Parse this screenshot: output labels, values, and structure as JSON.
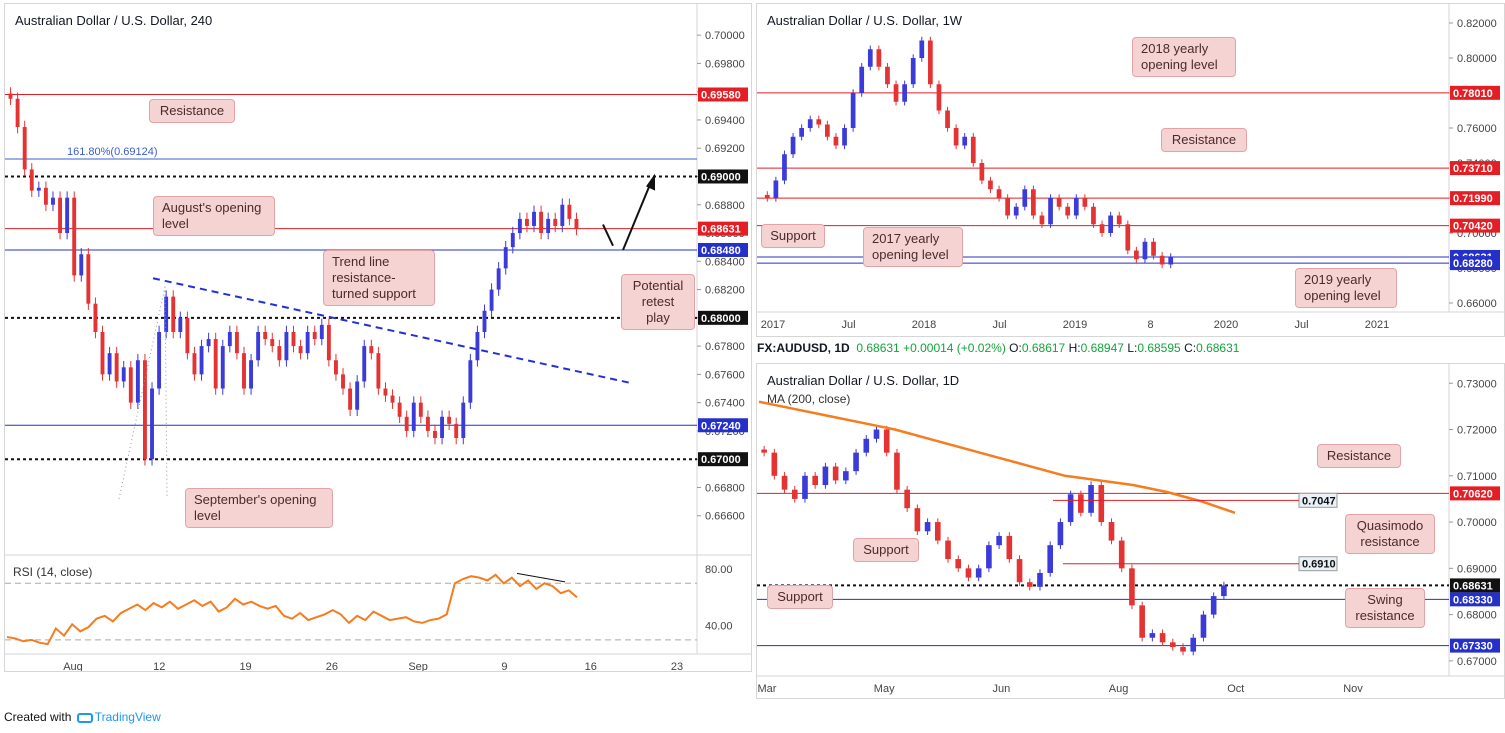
{
  "footer": {
    "created_with": "Created with",
    "brand": "TradingView"
  },
  "info": {
    "symbol": "FX:AUDUSD, 1D",
    "price": "0.68631",
    "change": "+0.00014 (+0.02%)",
    "o_label": "O:",
    "o": "0.68617",
    "h_label": "H:",
    "h": "0.68947",
    "l_label": "L:",
    "l": "0.68595",
    "c_label": "C:",
    "c": "0.68631"
  },
  "colors": {
    "up": "#3b3bd9",
    "down": "#e33333",
    "ma": "#f57c1f",
    "rsi": "#f57c1f",
    "resistance": "#e31e24",
    "support": "#2430c8"
  },
  "chart_data": [
    {
      "type": "candlestick",
      "title": "Australian Dollar / U.S. Dollar, 240",
      "ylim": [
        0.664,
        0.701
      ],
      "y_ticks": [
        "0.70000",
        "0.69800",
        "0.69600",
        "0.69400",
        "0.69200",
        "0.69000",
        "0.68800",
        "0.68600",
        "0.68400",
        "0.68200",
        "0.68000",
        "0.67800",
        "0.67600",
        "0.67400",
        "0.67200",
        "0.67000",
        "0.66800",
        "0.66600"
      ],
      "x_ticks": [
        "Aug",
        "12",
        "19",
        "26",
        "Sep",
        "9",
        "16",
        "23"
      ],
      "levels": [
        {
          "value": 0.6958,
          "label": "0.69580",
          "style": "red"
        },
        {
          "value": 0.69124,
          "label": "161.80%(0.69124)",
          "style": "fib"
        },
        {
          "value": 0.69,
          "label": "0.69000",
          "style": "black"
        },
        {
          "value": 0.68631,
          "label": "0.68631",
          "style": "red"
        },
        {
          "value": 0.6848,
          "label": "0.68480",
          "style": "blue"
        },
        {
          "value": 0.68,
          "label": "0.68000",
          "style": "black"
        },
        {
          "value": 0.6724,
          "label": "0.67240",
          "style": "blue"
        },
        {
          "value": 0.67,
          "label": "0.67000",
          "style": "black"
        }
      ],
      "annotations": [
        "Resistance",
        "August's opening level",
        "Trend line resistance-turned support",
        "Potential retest play",
        "September's opening level"
      ],
      "price_path": [
        0.6955,
        0.6935,
        0.6905,
        0.689,
        0.6892,
        0.688,
        0.6885,
        0.686,
        0.6885,
        0.683,
        0.6845,
        0.681,
        0.679,
        0.676,
        0.6775,
        0.6755,
        0.6765,
        0.674,
        0.677,
        0.67,
        0.675,
        0.679,
        0.6815,
        0.679,
        0.68,
        0.6775,
        0.676,
        0.678,
        0.6785,
        0.675,
        0.678,
        0.679,
        0.6775,
        0.675,
        0.677,
        0.679,
        0.6785,
        0.678,
        0.677,
        0.679,
        0.678,
        0.6775,
        0.679,
        0.6785,
        0.6795,
        0.677,
        0.676,
        0.675,
        0.6735,
        0.6755,
        0.678,
        0.6775,
        0.675,
        0.6745,
        0.674,
        0.673,
        0.672,
        0.674,
        0.673,
        0.672,
        0.6715,
        0.673,
        0.6725,
        0.6715,
        0.674,
        0.677,
        0.679,
        0.6805,
        0.682,
        0.6835,
        0.685,
        0.686,
        0.687,
        0.6865,
        0.6875,
        0.686,
        0.687,
        0.6865,
        0.688,
        0.687,
        0.6863
      ],
      "rsi": {
        "label": "RSI (14, close)",
        "ticks": [
          "80.00",
          "40.00"
        ],
        "ylim": [
          20,
          90
        ],
        "values": [
          32,
          31,
          29,
          30,
          28,
          27,
          38,
          33,
          41,
          36,
          39,
          45,
          47,
          43,
          49,
          52,
          55,
          51,
          56,
          53,
          57,
          52,
          55,
          58,
          54,
          57,
          50,
          53,
          59,
          55,
          57,
          54,
          52,
          54,
          47,
          45,
          49,
          44,
          46,
          48,
          51,
          48,
          42,
          47,
          44,
          50,
          47,
          44,
          45,
          46,
          43,
          42,
          44,
          45,
          48,
          70,
          73,
          75,
          74,
          72,
          76,
          70,
          74,
          68,
          72,
          66,
          70,
          68,
          63,
          65,
          60
        ]
      }
    },
    {
      "type": "candlestick",
      "title": "Australian Dollar / U.S. Dollar, 1W",
      "ylim": [
        0.648,
        0.824
      ],
      "y_ticks": [
        "0.82000",
        "0.80000",
        "0.78000",
        "0.76000",
        "0.74000",
        "0.72000",
        "0.70000",
        "0.68000",
        "0.66000"
      ],
      "x_ticks": [
        "2017",
        "Jul",
        "2018",
        "Jul",
        "2019",
        "8",
        "2020",
        "Jul",
        "2021"
      ],
      "levels": [
        {
          "value": 0.7801,
          "label": "0.78010",
          "style": "red"
        },
        {
          "value": 0.7371,
          "label": "0.73710",
          "style": "red"
        },
        {
          "value": 0.7199,
          "label": "0.71990",
          "style": "red"
        },
        {
          "value": 0.7042,
          "label": "0.70420",
          "style": "red"
        },
        {
          "value": 0.68631,
          "label": "0.68631",
          "style": "blue"
        },
        {
          "value": 0.6828,
          "label": "0.68280",
          "style": "blue"
        }
      ],
      "annotations": [
        "2018 yearly opening level",
        "Resistance",
        "Support",
        "2017 yearly opening level",
        "2019 yearly opening level"
      ],
      "price_path": [
        0.72,
        0.73,
        0.745,
        0.755,
        0.76,
        0.765,
        0.762,
        0.755,
        0.75,
        0.76,
        0.78,
        0.795,
        0.805,
        0.795,
        0.785,
        0.775,
        0.785,
        0.8,
        0.81,
        0.785,
        0.77,
        0.76,
        0.75,
        0.755,
        0.74,
        0.73,
        0.725,
        0.72,
        0.71,
        0.715,
        0.725,
        0.71,
        0.705,
        0.72,
        0.715,
        0.71,
        0.72,
        0.715,
        0.705,
        0.7,
        0.71,
        0.705,
        0.69,
        0.685,
        0.695,
        0.687,
        0.682,
        0.6863
      ]
    },
    {
      "type": "candlestick",
      "title": "Australian Dollar / U.S. Dollar, 1D",
      "ylim": [
        0.665,
        0.732
      ],
      "y_ticks": [
        "0.73000",
        "0.72000",
        "0.71000",
        "0.70000",
        "0.69000",
        "0.68000",
        "0.67000"
      ],
      "x_ticks": [
        "Mar",
        "May",
        "Jun",
        "Aug",
        "Oct",
        "Nov"
      ],
      "ma_label": "MA (200, close)",
      "ma_path": [
        0.726,
        0.7245,
        0.723,
        0.7215,
        0.72,
        0.718,
        0.716,
        0.714,
        0.712,
        0.71,
        0.709,
        0.708,
        0.7065,
        0.7045,
        0.702
      ],
      "levels": [
        {
          "value": 0.7062,
          "label": "0.70620",
          "style": "red"
        },
        {
          "value": 0.7047,
          "label": "0.7047",
          "style": "white"
        },
        {
          "value": 0.691,
          "label": "0.6910",
          "style": "white"
        },
        {
          "value": 0.68631,
          "label": "0.68631",
          "style": "black"
        },
        {
          "value": 0.6833,
          "label": "0.68330",
          "style": "blue"
        },
        {
          "value": 0.6733,
          "label": "0.67330",
          "style": "blue"
        }
      ],
      "annotations": [
        "Resistance",
        "Quasimodo resistance",
        "Support",
        "Swing resistance",
        "Support"
      ],
      "price_path": [
        0.715,
        0.71,
        0.707,
        0.705,
        0.71,
        0.708,
        0.712,
        0.709,
        0.711,
        0.715,
        0.718,
        0.72,
        0.715,
        0.707,
        0.703,
        0.698,
        0.7,
        0.696,
        0.692,
        0.69,
        0.688,
        0.69,
        0.695,
        0.697,
        0.692,
        0.687,
        0.686,
        0.689,
        0.695,
        0.7,
        0.706,
        0.702,
        0.708,
        0.7,
        0.696,
        0.69,
        0.682,
        0.675,
        0.676,
        0.674,
        0.673,
        0.672,
        0.675,
        0.68,
        0.684,
        0.6863
      ]
    }
  ]
}
